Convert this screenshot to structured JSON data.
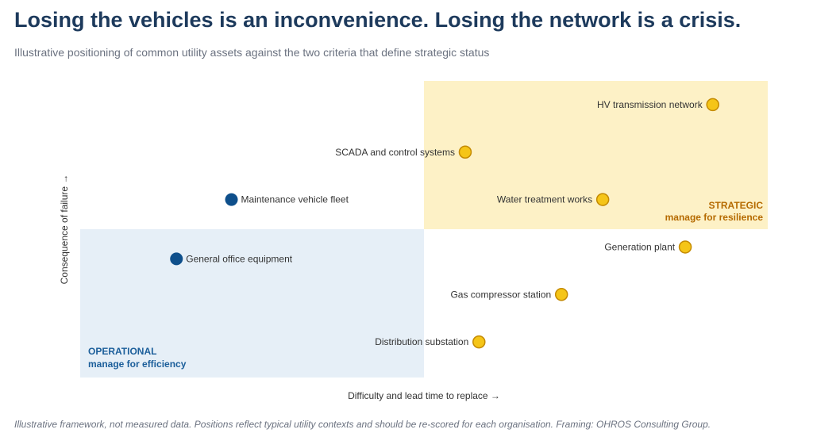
{
  "title": "Losing the vehicles is an inconvenience. Losing the network is a crisis.",
  "subtitle": "Illustrative positioning of common utility assets against the two criteria that define strategic status",
  "footnote": "Illustrative framework, not measured data. Positions reflect typical utility contexts and should be re-scored for each organisation. Framing: OHROS Consulting Group.",
  "colors": {
    "strategic_fill": "#fdf1c6",
    "strategic_point": "#f5c518",
    "strategic_point_stroke": "#c48a00",
    "strategic_text": "#b56a00",
    "operational_fill": "#e6eff7",
    "operational_point": "#0e4f8b",
    "operational_text": "#1b5e9a",
    "label_text": "#333333",
    "axis_text": "#333333"
  },
  "chart_data": {
    "type": "scatter",
    "xlabel": "Difficulty and lead time to replace →",
    "ylabel": "Consequence of failure →",
    "xlim": [
      0,
      100
    ],
    "ylim": [
      0,
      100
    ],
    "grid": false,
    "quadrants": [
      {
        "id": "operational",
        "title": "OPERATIONAL",
        "subtitle": "manage for efficiency",
        "x": [
          0,
          50
        ],
        "y": [
          0,
          50
        ]
      },
      {
        "id": "strategic",
        "title": "STRATEGIC",
        "subtitle": "manage for resilience",
        "x": [
          50,
          100
        ],
        "y": [
          50,
          100
        ]
      }
    ],
    "series": [
      {
        "group": "strategic",
        "points": [
          {
            "label": "HV transmission network",
            "x": 92,
            "y": 92
          },
          {
            "label": "SCADA and control systems",
            "x": 56,
            "y": 76
          },
          {
            "label": "Water treatment works",
            "x": 76,
            "y": 60
          },
          {
            "label": "Generation plant",
            "x": 88,
            "y": 44
          },
          {
            "label": "Gas compressor station",
            "x": 70,
            "y": 28
          },
          {
            "label": "Distribution substation",
            "x": 58,
            "y": 12
          }
        ]
      },
      {
        "group": "operational",
        "points": [
          {
            "label": "Maintenance vehicle fleet",
            "x": 22,
            "y": 60
          },
          {
            "label": "General office equipment",
            "x": 14,
            "y": 40
          }
        ]
      }
    ]
  }
}
